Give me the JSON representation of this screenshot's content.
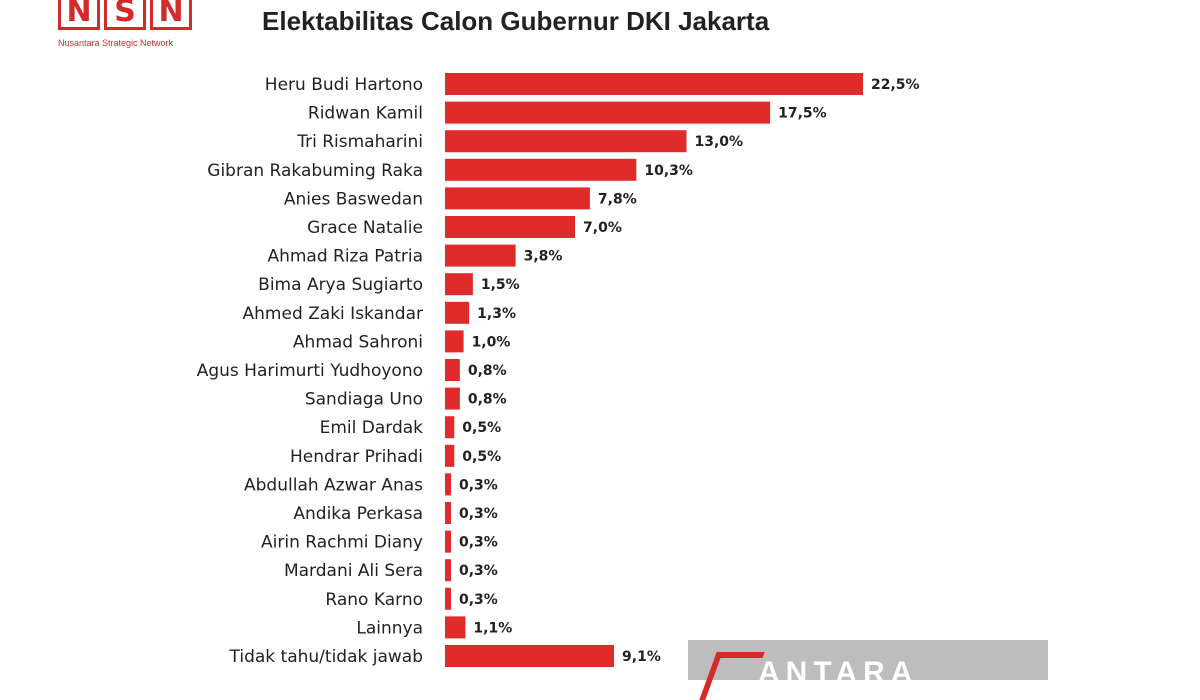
{
  "logo": {
    "letters": [
      "N",
      "S",
      "N"
    ],
    "subtitle": "Nusantara Strategic Network"
  },
  "watermark": {
    "text": "ANTARA"
  },
  "colors": {
    "bar": "#e02b2b",
    "logo": "#d42a2a",
    "text": "#222222"
  },
  "chart_data": {
    "type": "bar",
    "orientation": "horizontal",
    "title": "Elektabilitas Calon Gubernur DKI Jakarta",
    "categories": [
      "Heru Budi Hartono",
      "Ridwan Kamil",
      "Tri Rismaharini",
      "Gibran Rakabuming Raka",
      "Anies Baswedan",
      "Grace Natalie",
      "Ahmad Riza Patria",
      "Bima Arya Sugiarto",
      "Ahmed Zaki Iskandar",
      "Ahmad Sahroni",
      "Agus Harimurti Yudhoyono",
      "Sandiaga Uno",
      "Emil Dardak",
      "Hendrar Prihadi",
      "Abdullah Azwar Anas",
      "Andika Perkasa",
      "Airin Rachmi Diany",
      "Mardani Ali Sera",
      "Rano Karno",
      "Lainnya",
      "Tidak tahu/tidak jawab"
    ],
    "values": [
      22.5,
      17.5,
      13.0,
      10.3,
      7.8,
      7.0,
      3.8,
      1.5,
      1.3,
      1.0,
      0.8,
      0.8,
      0.5,
      0.5,
      0.3,
      0.3,
      0.3,
      0.3,
      0.3,
      1.1,
      9.1
    ],
    "data_labels": [
      "22,5%",
      "17,5%",
      "13,0%",
      "10,3%",
      "7,8%",
      "7,0%",
      "3,8%",
      "1,5%",
      "1,3%",
      "1,0%",
      "0,8%",
      "0,8%",
      "0,5%",
      "0,5%",
      "0,3%",
      "0,3%",
      "0,3%",
      "0,3%",
      "0,3%",
      "1,1%",
      "9,1%"
    ],
    "xlim": [
      0,
      22.5
    ],
    "grid": false,
    "legend": "none"
  }
}
